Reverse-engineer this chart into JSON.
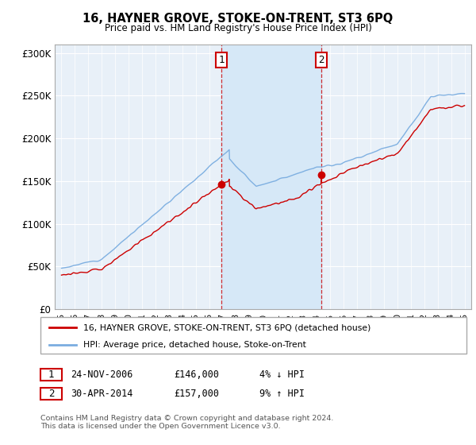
{
  "title": "16, HAYNER GROVE, STOKE-ON-TRENT, ST3 6PQ",
  "subtitle": "Price paid vs. HM Land Registry's House Price Index (HPI)",
  "ylim": [
    0,
    310000
  ],
  "yticks": [
    0,
    50000,
    100000,
    150000,
    200000,
    250000,
    300000
  ],
  "ytick_labels": [
    "£0",
    "£50K",
    "£100K",
    "£150K",
    "£200K",
    "£250K",
    "£300K"
  ],
  "xlim_start": 1994.5,
  "xlim_end": 2025.5,
  "purchase1_year": 2006.9,
  "purchase1_price": 146000,
  "purchase2_year": 2014.33,
  "purchase2_price": 157000,
  "shade_color": "#d6e8f7",
  "line_color_property": "#cc0000",
  "line_color_hpi": "#7aade0",
  "grid_color": "#ffffff",
  "bg_color": "#e8f0f8",
  "legend_label_property": "16, HAYNER GROVE, STOKE-ON-TRENT, ST3 6PQ (detached house)",
  "legend_label_hpi": "HPI: Average price, detached house, Stoke-on-Trent",
  "purchase1_display": "24-NOV-2006",
  "purchase1_amount": "£146,000",
  "purchase1_hpi_text": "4% ↓ HPI",
  "purchase2_display": "30-APR-2014",
  "purchase2_amount": "£157,000",
  "purchase2_hpi_text": "9% ↑ HPI",
  "footer": "Contains HM Land Registry data © Crown copyright and database right 2024.\nThis data is licensed under the Open Government Licence v3.0."
}
